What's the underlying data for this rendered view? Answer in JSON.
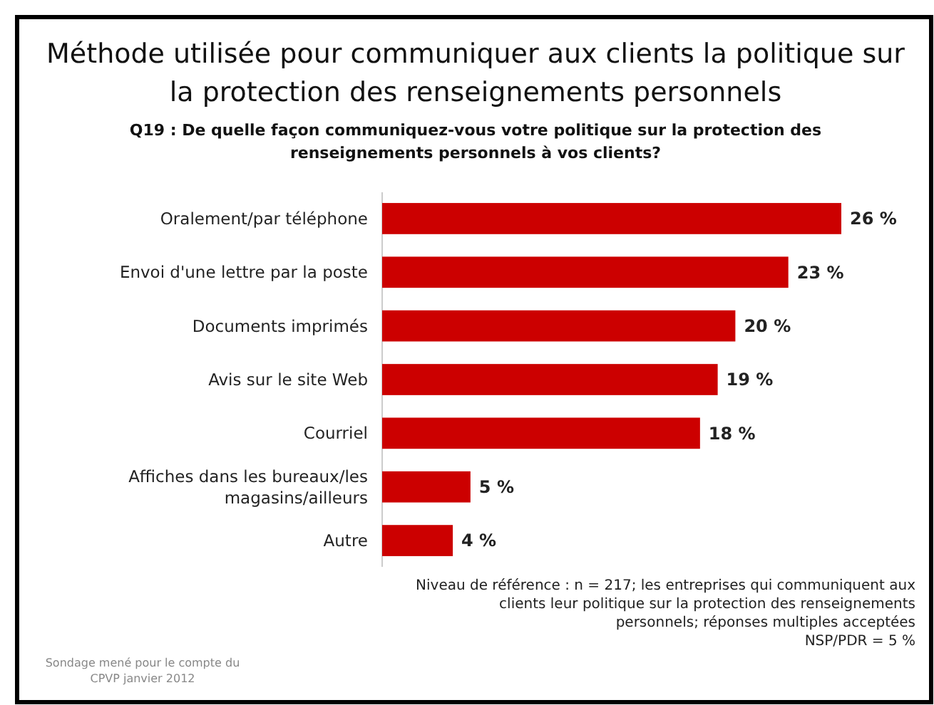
{
  "chart_data": {
    "type": "bar",
    "orientation": "horizontal",
    "title": "Méthode utilisée pour communiquer aux clients la politique sur la protection des renseignements personnels",
    "subtitle": "Q19 : De quelle façon communiquez-vous votre politique sur la protection des renseignements personnels à vos clients?",
    "categories": [
      "Oralement/par téléphone",
      "Envoi d'une lettre par la poste",
      "Documents imprimés",
      "Avis sur le site Web",
      "Courriel",
      "Affiches dans les bureaux/les magasins/ailleurs",
      "Autre"
    ],
    "values": [
      26,
      23,
      20,
      19,
      18,
      5,
      4
    ],
    "value_labels": [
      "26 %",
      "23 %",
      "20 %",
      "19 %",
      "18 %",
      "5 %",
      "4 %"
    ],
    "color": "#cc0000",
    "annotations": [
      "Niveau de référence : n = 217; les entreprises qui communiquent aux clients leur politique sur la protection des renseignements personnels; réponses multiples acceptées",
      "NSP/PDR = 5 %",
      "Sondage mené pour le compte du CPVP janvier 2012"
    ],
    "stacked": false
  }
}
